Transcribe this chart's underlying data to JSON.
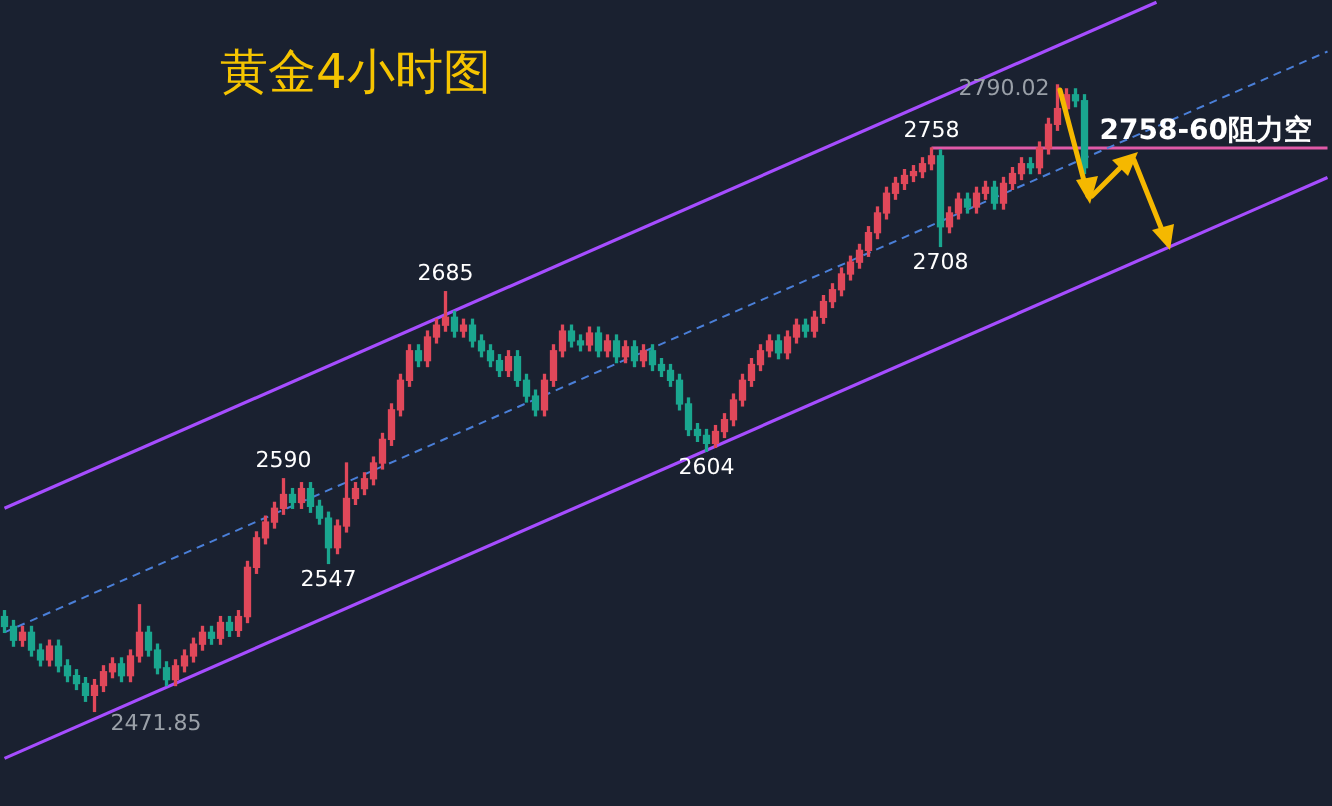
{
  "chart_data": {
    "type": "candlestick",
    "title": "黄金4小时图",
    "tick_labels": false,
    "legend": false,
    "categories": [
      null,
      null,
      null,
      null,
      null,
      null,
      null,
      null,
      null,
      null,
      null,
      null,
      null,
      null,
      null,
      null,
      null,
      null,
      null,
      null,
      null,
      null,
      null,
      null,
      null,
      null,
      null,
      null,
      null,
      null,
      null,
      null,
      null,
      null,
      null,
      null,
      null,
      null,
      null,
      null,
      null,
      null,
      null,
      null,
      null,
      null,
      null,
      null,
      null,
      null,
      null,
      null,
      null,
      null,
      null,
      null,
      null,
      null,
      null,
      null,
      null,
      null,
      null,
      null,
      null,
      null,
      null,
      null,
      null,
      null,
      null,
      null,
      null,
      null,
      null,
      null,
      null,
      null,
      null,
      null,
      null,
      null,
      null,
      null,
      null,
      null,
      null,
      null,
      null,
      null,
      null,
      null,
      null,
      null,
      null,
      null,
      null,
      null,
      null,
      null,
      null,
      null,
      null,
      null,
      null,
      null,
      null,
      null,
      null,
      null,
      null,
      null,
      null,
      null,
      null,
      null,
      null,
      null,
      null,
      null,
      null,
      null,
      null,
      null,
      null,
      null,
      null,
      null,
      null,
      null,
      null,
      null,
      null,
      null,
      null,
      null,
      null,
      null,
      null,
      null,
      null,
      null,
      null,
      null,
      null,
      null,
      null,
      null
    ],
    "ohlc": [
      [
        2520,
        2523,
        2512,
        2515
      ],
      [
        2515,
        2518,
        2505,
        2508
      ],
      [
        2508,
        2515,
        2505,
        2512
      ],
      [
        2512,
        2515,
        2500,
        2503
      ],
      [
        2503,
        2506,
        2495,
        2498
      ],
      [
        2498,
        2508,
        2495,
        2505
      ],
      [
        2505,
        2508,
        2492,
        2495
      ],
      [
        2495,
        2498,
        2487,
        2490
      ],
      [
        2490,
        2493,
        2483,
        2486
      ],
      [
        2486,
        2489,
        2477,
        2480
      ],
      [
        2480,
        2488,
        2471.85,
        2485
      ],
      [
        2485,
        2495,
        2482,
        2492
      ],
      [
        2492,
        2499,
        2489,
        2496
      ],
      [
        2496,
        2499,
        2487,
        2490
      ],
      [
        2490,
        2503,
        2487,
        2500
      ],
      [
        2500,
        2526,
        2497,
        2512
      ],
      [
        2512,
        2515,
        2500,
        2503
      ],
      [
        2503,
        2506,
        2491,
        2494
      ],
      [
        2494,
        2497,
        2485,
        2488
      ],
      [
        2488,
        2498,
        2485,
        2495
      ],
      [
        2495,
        2503,
        2492,
        2500
      ],
      [
        2500,
        2509,
        2497,
        2506
      ],
      [
        2506,
        2515,
        2503,
        2512
      ],
      [
        2512,
        2515,
        2506,
        2509
      ],
      [
        2509,
        2520,
        2506,
        2517
      ],
      [
        2517,
        2520,
        2510,
        2513
      ],
      [
        2513,
        2523,
        2510,
        2520
      ],
      [
        2520,
        2548,
        2517,
        2545
      ],
      [
        2545,
        2563,
        2542,
        2560
      ],
      [
        2560,
        2571,
        2557,
        2568
      ],
      [
        2568,
        2578,
        2565,
        2575
      ],
      [
        2575,
        2590,
        2572,
        2582
      ],
      [
        2582,
        2585,
        2575,
        2578
      ],
      [
        2578,
        2588,
        2575,
        2585
      ],
      [
        2585,
        2588,
        2573,
        2576
      ],
      [
        2576,
        2579,
        2567,
        2570
      ],
      [
        2570,
        2573,
        2547,
        2555
      ],
      [
        2555,
        2569,
        2552,
        2566
      ],
      [
        2566,
        2598,
        2563,
        2580
      ],
      [
        2580,
        2588,
        2577,
        2585
      ],
      [
        2585,
        2593,
        2582,
        2590
      ],
      [
        2590,
        2601,
        2587,
        2598
      ],
      [
        2598,
        2613,
        2595,
        2610
      ],
      [
        2610,
        2628,
        2607,
        2625
      ],
      [
        2625,
        2643,
        2622,
        2640
      ],
      [
        2640,
        2658,
        2637,
        2655
      ],
      [
        2655,
        2658,
        2647,
        2650
      ],
      [
        2650,
        2665,
        2647,
        2662
      ],
      [
        2662,
        2671,
        2659,
        2668
      ],
      [
        2668,
        2685,
        2665,
        2672
      ],
      [
        2672,
        2675,
        2662,
        2665
      ],
      [
        2665,
        2671,
        2662,
        2668
      ],
      [
        2668,
        2671,
        2657,
        2660
      ],
      [
        2660,
        2663,
        2652,
        2655
      ],
      [
        2655,
        2658,
        2647,
        2650
      ],
      [
        2650,
        2653,
        2642,
        2645
      ],
      [
        2645,
        2655,
        2642,
        2652
      ],
      [
        2652,
        2655,
        2637,
        2640
      ],
      [
        2640,
        2643,
        2629,
        2632
      ],
      [
        2632,
        2635,
        2622,
        2625
      ],
      [
        2625,
        2643,
        2622,
        2640
      ],
      [
        2640,
        2658,
        2637,
        2655
      ],
      [
        2655,
        2668,
        2652,
        2665
      ],
      [
        2665,
        2668,
        2657,
        2660
      ],
      [
        2660,
        2663,
        2655,
        2658
      ],
      [
        2658,
        2667,
        2655,
        2664
      ],
      [
        2664,
        2667,
        2652,
        2655
      ],
      [
        2655,
        2663,
        2652,
        2660
      ],
      [
        2660,
        2663,
        2649,
        2652
      ],
      [
        2652,
        2660,
        2649,
        2657
      ],
      [
        2657,
        2660,
        2647,
        2650
      ],
      [
        2650,
        2658,
        2647,
        2655
      ],
      [
        2655,
        2658,
        2645,
        2648
      ],
      [
        2648,
        2651,
        2642,
        2645
      ],
      [
        2645,
        2648,
        2637,
        2640
      ],
      [
        2640,
        2643,
        2625,
        2628
      ],
      [
        2628,
        2631,
        2612,
        2615
      ],
      [
        2615,
        2618,
        2609,
        2612
      ],
      [
        2612,
        2615,
        2604,
        2608
      ],
      [
        2608,
        2617,
        2606,
        2614
      ],
      [
        2614,
        2623,
        2611,
        2620
      ],
      [
        2620,
        2633,
        2617,
        2630
      ],
      [
        2630,
        2643,
        2627,
        2640
      ],
      [
        2640,
        2651,
        2637,
        2648
      ],
      [
        2648,
        2658,
        2645,
        2655
      ],
      [
        2655,
        2663,
        2652,
        2660
      ],
      [
        2660,
        2663,
        2651,
        2654
      ],
      [
        2654,
        2665,
        2651,
        2662
      ],
      [
        2662,
        2671,
        2659,
        2668
      ],
      [
        2668,
        2671,
        2662,
        2665
      ],
      [
        2665,
        2675,
        2662,
        2672
      ],
      [
        2672,
        2683,
        2669,
        2680
      ],
      [
        2680,
        2689,
        2677,
        2686
      ],
      [
        2686,
        2697,
        2683,
        2694
      ],
      [
        2694,
        2703,
        2691,
        2700
      ],
      [
        2700,
        2709,
        2697,
        2706
      ],
      [
        2706,
        2718,
        2703,
        2715
      ],
      [
        2715,
        2728,
        2712,
        2725
      ],
      [
        2725,
        2738,
        2722,
        2735
      ],
      [
        2735,
        2743,
        2732,
        2740
      ],
      [
        2740,
        2747,
        2737,
        2744
      ],
      [
        2744,
        2749,
        2741,
        2746
      ],
      [
        2746,
        2753,
        2743,
        2750
      ],
      [
        2750,
        2758,
        2747,
        2754
      ],
      [
        2754,
        2757,
        2708,
        2718
      ],
      [
        2718,
        2728,
        2715,
        2725
      ],
      [
        2725,
        2735,
        2722,
        2732
      ],
      [
        2732,
        2735,
        2725,
        2728
      ],
      [
        2728,
        2738,
        2725,
        2735
      ],
      [
        2735,
        2741,
        2732,
        2738
      ],
      [
        2738,
        2741,
        2727,
        2730
      ],
      [
        2730,
        2743,
        2727,
        2740
      ],
      [
        2740,
        2748,
        2737,
        2745
      ],
      [
        2745,
        2753,
        2742,
        2750
      ],
      [
        2750,
        2753,
        2745,
        2748
      ],
      [
        2748,
        2761,
        2745,
        2758
      ],
      [
        2758,
        2773,
        2755,
        2770
      ],
      [
        2770,
        2790.02,
        2767,
        2778
      ],
      [
        2778,
        2788,
        2775,
        2785
      ],
      [
        2785,
        2788,
        2779,
        2782
      ],
      [
        2782,
        2785,
        2745,
        2748
      ],
      null,
      null,
      null,
      null,
      null,
      null,
      null,
      null,
      null,
      null,
      null,
      null,
      null,
      null,
      null,
      null,
      null,
      null,
      null,
      null,
      null,
      null,
      null,
      null,
      null,
      null,
      null
    ],
    "series": [
      {
        "type": "line",
        "color": "#a64dff",
        "values": [
          2575,
          null,
          null,
          null,
          null,
          null,
          null,
          null,
          null,
          null,
          null,
          null,
          null,
          null,
          null,
          null,
          null,
          null,
          null,
          null,
          null,
          null,
          null,
          null,
          null,
          null,
          null,
          null,
          null,
          null,
          null,
          null,
          null,
          null,
          null,
          null,
          null,
          null,
          null,
          null,
          null,
          null,
          null,
          null,
          null,
          null,
          null,
          null,
          null,
          null,
          null,
          null,
          null,
          null,
          null,
          null,
          null,
          null,
          null,
          null,
          null,
          null,
          null,
          null,
          null,
          null,
          null,
          null,
          null,
          null,
          null,
          null,
          null,
          null,
          null,
          null,
          null,
          null,
          null,
          null,
          null,
          null,
          null,
          null,
          null,
          null,
          null,
          null,
          null,
          null,
          null,
          null,
          null,
          null,
          null,
          null,
          null,
          null,
          null,
          null,
          null,
          null,
          null,
          null,
          null,
          null,
          null,
          null,
          null,
          null,
          null,
          null,
          null,
          null,
          null,
          null,
          null,
          null,
          null,
          null,
          null,
          null,
          null,
          null,
          null,
          null,
          null,
          null,
          2832,
          null,
          null,
          null,
          null,
          null,
          null,
          null,
          null,
          null,
          null,
          null,
          null,
          null,
          null,
          null,
          null,
          null,
          null,
          null
        ]
      },
      {
        "type": "line",
        "color": "#a64dff",
        "values": [
          2448,
          null,
          null,
          null,
          null,
          null,
          null,
          null,
          null,
          null,
          null,
          null,
          null,
          null,
          null,
          null,
          null,
          null,
          null,
          null,
          null,
          null,
          null,
          null,
          null,
          null,
          null,
          null,
          null,
          null,
          null,
          null,
          null,
          null,
          null,
          null,
          null,
          null,
          null,
          null,
          null,
          null,
          null,
          null,
          null,
          null,
          null,
          null,
          null,
          null,
          null,
          null,
          null,
          null,
          null,
          null,
          null,
          null,
          null,
          null,
          null,
          null,
          null,
          null,
          null,
          null,
          null,
          null,
          null,
          null,
          null,
          null,
          null,
          null,
          null,
          null,
          null,
          null,
          null,
          null,
          null,
          null,
          null,
          null,
          null,
          null,
          null,
          null,
          null,
          null,
          null,
          null,
          null,
          null,
          null,
          null,
          null,
          null,
          null,
          null,
          null,
          null,
          null,
          null,
          null,
          null,
          null,
          null,
          null,
          null,
          null,
          null,
          null,
          null,
          null,
          null,
          null,
          null,
          null,
          null,
          null,
          null,
          null,
          null,
          null,
          null,
          null,
          null,
          null,
          null,
          null,
          null,
          null,
          null,
          null,
          null,
          null,
          null,
          null,
          null,
          null,
          null,
          null,
          null,
          null,
          null,
          null,
          2743
        ]
      },
      {
        "type": "line",
        "color": "#4a7fd8",
        "line_style": "dashed",
        "values": [
          2512,
          null,
          null,
          null,
          null,
          null,
          null,
          null,
          null,
          null,
          null,
          null,
          null,
          null,
          null,
          null,
          null,
          null,
          null,
          null,
          null,
          null,
          null,
          null,
          null,
          null,
          null,
          null,
          null,
          null,
          null,
          null,
          null,
          null,
          null,
          null,
          null,
          null,
          null,
          null,
          null,
          null,
          null,
          null,
          null,
          null,
          null,
          null,
          null,
          null,
          null,
          null,
          null,
          null,
          null,
          null,
          null,
          null,
          null,
          null,
          null,
          null,
          null,
          null,
          null,
          null,
          null,
          null,
          null,
          null,
          null,
          null,
          null,
          null,
          null,
          null,
          null,
          null,
          null,
          null,
          null,
          null,
          null,
          null,
          null,
          null,
          null,
          null,
          null,
          null,
          null,
          null,
          null,
          null,
          null,
          null,
          null,
          null,
          null,
          null,
          null,
          null,
          null,
          null,
          null,
          null,
          null,
          null,
          null,
          null,
          null,
          null,
          null,
          null,
          null,
          null,
          null,
          null,
          null,
          null,
          null,
          null,
          null,
          null,
          null,
          null,
          null,
          null,
          null,
          null,
          null,
          null,
          null,
          null,
          null,
          null,
          null,
          null,
          null,
          null,
          null,
          null,
          null,
          null,
          null,
          null,
          null,
          2807
        ]
      },
      {
        "type": "line",
        "name": "2758-60阻力空",
        "color": "#e05aa8",
        "values": [
          null,
          null,
          null,
          null,
          null,
          null,
          null,
          null,
          null,
          null,
          null,
          null,
          null,
          null,
          null,
          null,
          null,
          null,
          null,
          null,
          null,
          null,
          null,
          null,
          null,
          null,
          null,
          null,
          null,
          null,
          null,
          null,
          null,
          null,
          null,
          null,
          null,
          null,
          null,
          null,
          null,
          null,
          null,
          null,
          null,
          null,
          null,
          null,
          null,
          null,
          null,
          null,
          null,
          null,
          null,
          null,
          null,
          null,
          null,
          null,
          null,
          null,
          null,
          null,
          null,
          null,
          null,
          null,
          null,
          null,
          null,
          null,
          null,
          null,
          null,
          null,
          null,
          null,
          null,
          null,
          null,
          null,
          null,
          null,
          null,
          null,
          null,
          null,
          null,
          null,
          null,
          null,
          null,
          null,
          null,
          null,
          null,
          null,
          null,
          null,
          null,
          null,
          null,
          2758,
          null,
          null,
          null,
          null,
          null,
          null,
          null,
          null,
          null,
          null,
          null,
          null,
          null,
          null,
          null,
          null,
          null,
          null,
          null,
          null,
          null,
          null,
          null,
          null,
          null,
          null,
          null,
          null,
          null,
          null,
          null,
          null,
          null,
          null,
          null,
          null,
          null,
          null,
          null,
          null,
          null,
          null,
          null,
          2758
        ]
      }
    ],
    "annotations": [
      "2471.85",
      "2790.02",
      {
        "text": "2590",
        "y": 2590
      },
      {
        "text": "2547",
        "y": 2547
      },
      {
        "text": "2685",
        "y": 2685
      },
      {
        "text": "2604",
        "y": 2604
      },
      {
        "text": "2758",
        "y": 2758
      },
      {
        "text": "2708",
        "y": 2708
      }
    ]
  }
}
